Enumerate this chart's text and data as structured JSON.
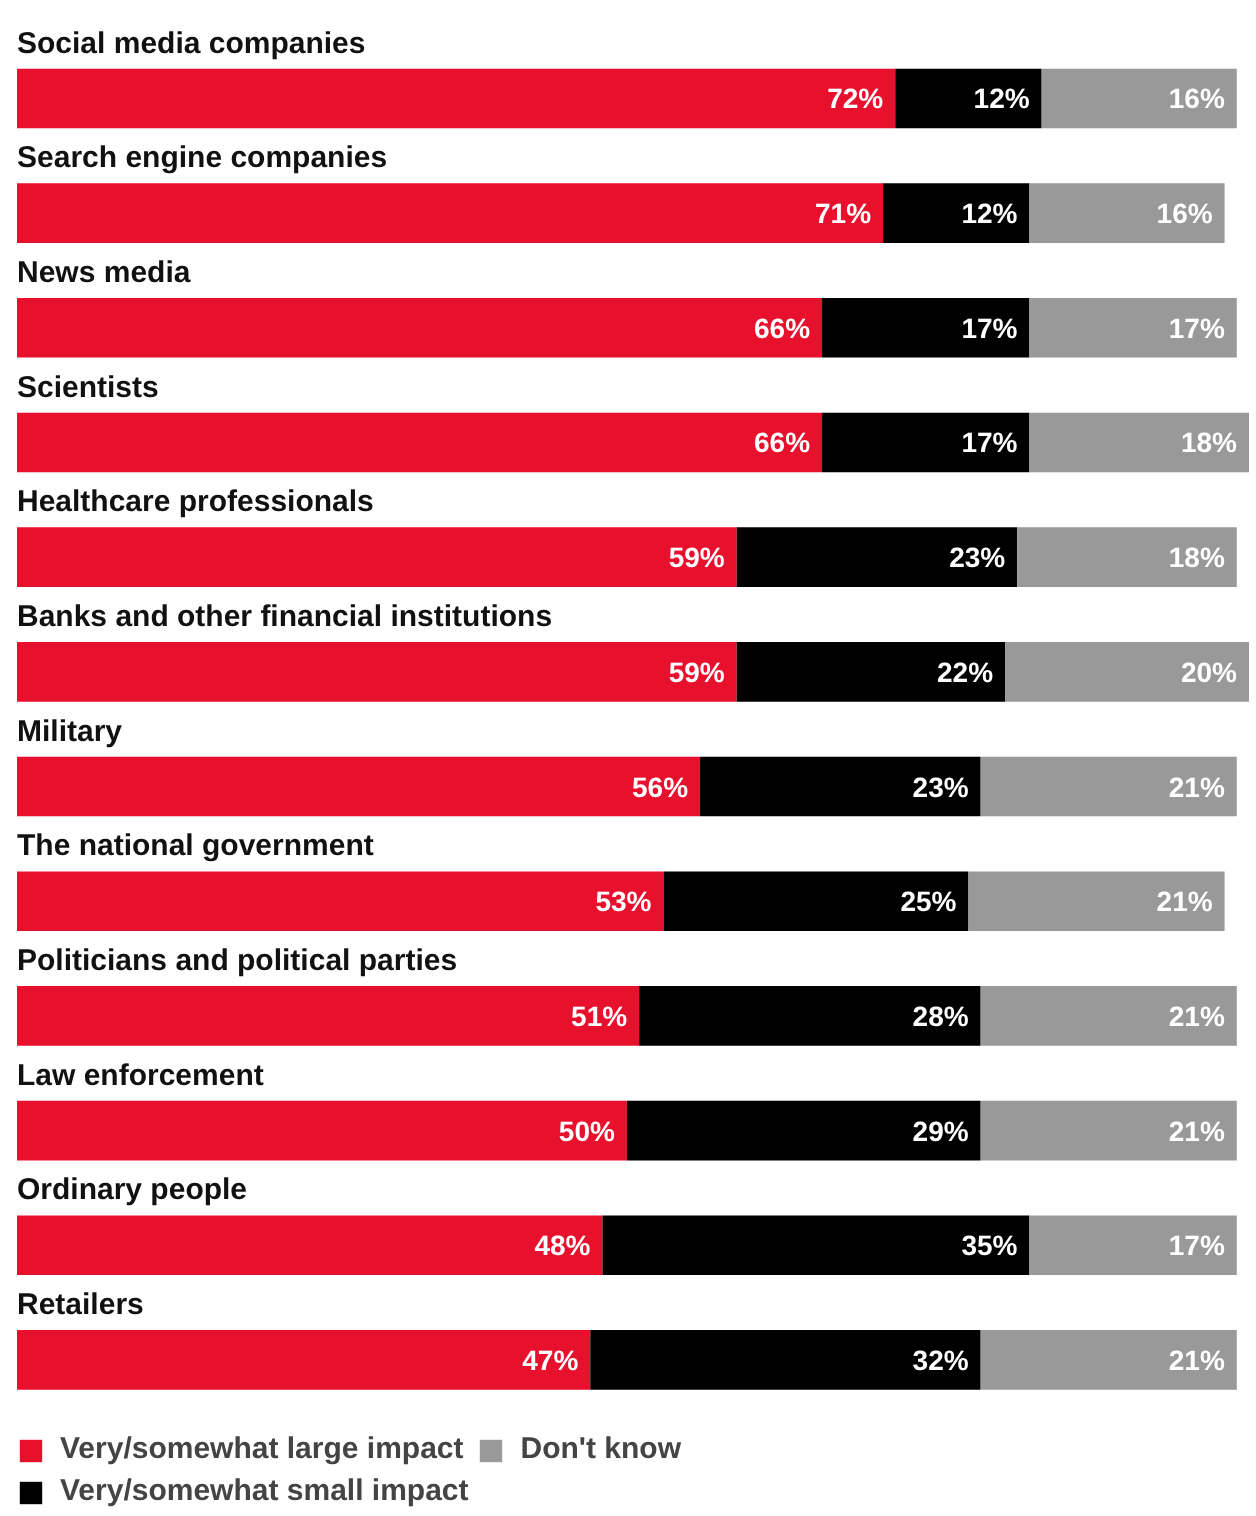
{
  "chart_data": {
    "type": "bar",
    "orientation": "horizontal",
    "stacked": true,
    "legend": "bottom",
    "categories": [
      "Social media companies",
      "Search engine companies",
      "News media",
      "Scientists",
      "Healthcare professionals",
      "Banks and other financial institutions",
      "Military",
      "The national government",
      "Politicians and political parties",
      "Law enforcement",
      "Ordinary people",
      "Retailers"
    ],
    "series": [
      {
        "name": "Very/somewhat large impact",
        "color": "#e8112d",
        "values": [
          72,
          71,
          66,
          66,
          59,
          59,
          56,
          53,
          51,
          50,
          48,
          47
        ],
        "value_labels": [
          "72%",
          "71%",
          "66%",
          "66%",
          "59%",
          "59%",
          "56%",
          "53%",
          "51%",
          "50%",
          "48%",
          "47%"
        ]
      },
      {
        "name": "Very/somewhat small impact",
        "color": "#000000",
        "values": [
          12,
          12,
          17,
          17,
          23,
          22,
          23,
          25,
          28,
          29,
          35,
          32
        ],
        "value_labels": [
          "12%",
          "12%",
          "17%",
          "17%",
          "23%",
          "22%",
          "23%",
          "25%",
          "28%",
          "29%",
          "35%",
          "32%"
        ]
      },
      {
        "name": "Don't know",
        "color": "#999999",
        "values": [
          16,
          16,
          17,
          18,
          18,
          20,
          21,
          21,
          21,
          21,
          17,
          21
        ],
        "value_labels": [
          "16%",
          "16%",
          "17%",
          "18%",
          "18%",
          "20%",
          "21%",
          "21%",
          "21%",
          "21%",
          "17%",
          "21%"
        ]
      }
    ]
  }
}
